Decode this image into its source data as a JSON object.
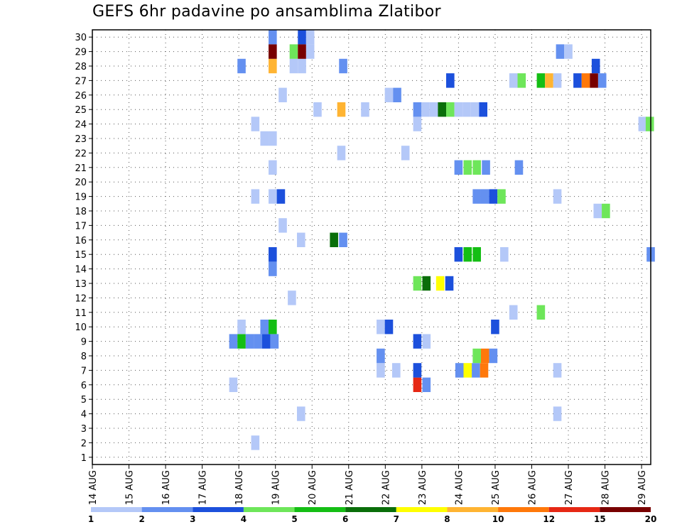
{
  "chart_data": {
    "type": "heatmap",
    "title": "GEFS 6hr padavine po ansamblima Zlatibor",
    "xlabel": "",
    "ylabel": "",
    "x_ticks": [
      "14 AUG",
      "15 AUG",
      "16 AUG",
      "17 AUG",
      "18 AUG",
      "19 AUG",
      "20 AUG",
      "21 AUG",
      "22 AUG",
      "23 AUG",
      "24 AUG",
      "25 AUG",
      "26 AUG",
      "27 AUG",
      "28 AUG",
      "29 AUG"
    ],
    "y_ticks": [
      "1",
      "2",
      "3",
      "4",
      "5",
      "6",
      "7",
      "8",
      "9",
      "10",
      "11",
      "12",
      "13",
      "14",
      "15",
      "16",
      "17",
      "18",
      "19",
      "20",
      "21",
      "22",
      "23",
      "24",
      "25",
      "26",
      "27",
      "28",
      "29",
      "30"
    ],
    "ylim": [
      1,
      30
    ],
    "x_unit": "6-hour step from 14 AUG 00Z",
    "xlim": [
      0,
      61
    ],
    "grid": true,
    "colorbar": {
      "labels": [
        "1",
        "2",
        "3",
        "4",
        "5",
        "6",
        "7",
        "8",
        "10",
        "12",
        "15",
        "20"
      ],
      "colors": [
        "#b4c8f8",
        "#6490f0",
        "#1c50dc",
        "#6ee65a",
        "#14be14",
        "#0a6e0a",
        "#ffff00",
        "#ffb432",
        "#ff780a",
        "#e62814",
        "#780000"
      ]
    },
    "cells": [
      {
        "x": 17.8,
        "y": 1,
        "c": 0
      },
      {
        "x": 22.8,
        "y": 3,
        "c": 0
      },
      {
        "x": 50.8,
        "y": 3,
        "c": 0
      },
      {
        "x": 15.4,
        "y": 5,
        "c": 0
      },
      {
        "x": 35.5,
        "y": 5,
        "c": 9
      },
      {
        "x": 36.5,
        "y": 5,
        "c": 1
      },
      {
        "x": 31.5,
        "y": 6,
        "c": 0
      },
      {
        "x": 33.2,
        "y": 6,
        "c": 0
      },
      {
        "x": 35.5,
        "y": 6,
        "c": 2
      },
      {
        "x": 40.1,
        "y": 6,
        "c": 1
      },
      {
        "x": 41.0,
        "y": 6,
        "c": 6
      },
      {
        "x": 41.9,
        "y": 6,
        "c": 1
      },
      {
        "x": 42.8,
        "y": 6,
        "c": 8
      },
      {
        "x": 50.8,
        "y": 6,
        "c": 0
      },
      {
        "x": 31.5,
        "y": 7,
        "c": 1
      },
      {
        "x": 42.0,
        "y": 7,
        "c": 3
      },
      {
        "x": 42.9,
        "y": 7,
        "c": 8
      },
      {
        "x": 43.8,
        "y": 7,
        "c": 1
      },
      {
        "x": 15.4,
        "y": 8,
        "c": 1
      },
      {
        "x": 16.3,
        "y": 8,
        "c": 4
      },
      {
        "x": 17.2,
        "y": 8,
        "c": 1
      },
      {
        "x": 18.1,
        "y": 8,
        "c": 1
      },
      {
        "x": 19.0,
        "y": 8,
        "c": 2
      },
      {
        "x": 19.9,
        "y": 8,
        "c": 1
      },
      {
        "x": 35.5,
        "y": 8,
        "c": 2
      },
      {
        "x": 36.5,
        "y": 8,
        "c": 0
      },
      {
        "x": 16.3,
        "y": 9,
        "c": 0
      },
      {
        "x": 18.8,
        "y": 9,
        "c": 1
      },
      {
        "x": 19.7,
        "y": 9,
        "c": 4
      },
      {
        "x": 31.5,
        "y": 9,
        "c": 0
      },
      {
        "x": 32.4,
        "y": 9,
        "c": 2
      },
      {
        "x": 44.0,
        "y": 9,
        "c": 2
      },
      {
        "x": 46.0,
        "y": 10,
        "c": 0
      },
      {
        "x": 49.0,
        "y": 10,
        "c": 3
      },
      {
        "x": 21.8,
        "y": 11,
        "c": 0
      },
      {
        "x": 35.5,
        "y": 12,
        "c": 3
      },
      {
        "x": 36.5,
        "y": 12,
        "c": 5
      },
      {
        "x": 38.0,
        "y": 12,
        "c": 6
      },
      {
        "x": 39.0,
        "y": 12,
        "c": 2
      },
      {
        "x": 19.7,
        "y": 13,
        "c": 1
      },
      {
        "x": 19.7,
        "y": 14,
        "c": 2
      },
      {
        "x": 40.0,
        "y": 14,
        "c": 2
      },
      {
        "x": 41.0,
        "y": 14,
        "c": 4
      },
      {
        "x": 42.0,
        "y": 14,
        "c": 4
      },
      {
        "x": 45.0,
        "y": 14,
        "c": 0
      },
      {
        "x": 61.0,
        "y": 14,
        "c": 1
      },
      {
        "x": 22.8,
        "y": 15,
        "c": 0
      },
      {
        "x": 26.4,
        "y": 15,
        "c": 5
      },
      {
        "x": 27.4,
        "y": 15,
        "c": 1
      },
      {
        "x": 20.8,
        "y": 16,
        "c": 0
      },
      {
        "x": 55.2,
        "y": 17,
        "c": 0
      },
      {
        "x": 56.1,
        "y": 17,
        "c": 3
      },
      {
        "x": 17.8,
        "y": 18,
        "c": 0
      },
      {
        "x": 19.7,
        "y": 18,
        "c": 0
      },
      {
        "x": 20.6,
        "y": 18,
        "c": 2
      },
      {
        "x": 42.0,
        "y": 18,
        "c": 1
      },
      {
        "x": 42.9,
        "y": 18,
        "c": 1
      },
      {
        "x": 43.8,
        "y": 18,
        "c": 2
      },
      {
        "x": 44.7,
        "y": 18,
        "c": 3
      },
      {
        "x": 50.8,
        "y": 18,
        "c": 0
      },
      {
        "x": 40.0,
        "y": 20,
        "c": 1
      },
      {
        "x": 41.0,
        "y": 20,
        "c": 3
      },
      {
        "x": 42.0,
        "y": 20,
        "c": 3
      },
      {
        "x": 43.0,
        "y": 20,
        "c": 1
      },
      {
        "x": 46.6,
        "y": 20,
        "c": 1
      },
      {
        "x": 19.7,
        "y": 20,
        "c": 0
      },
      {
        "x": 27.2,
        "y": 21,
        "c": 0
      },
      {
        "x": 34.2,
        "y": 21,
        "c": 0
      },
      {
        "x": 18.8,
        "y": 22,
        "c": 0
      },
      {
        "x": 19.7,
        "y": 22,
        "c": 0
      },
      {
        "x": 17.8,
        "y": 23,
        "c": 0
      },
      {
        "x": 35.5,
        "y": 23,
        "c": 0
      },
      {
        "x": 60.1,
        "y": 23,
        "c": 0
      },
      {
        "x": 60.9,
        "y": 23,
        "c": 3
      },
      {
        "x": 24.6,
        "y": 24,
        "c": 0
      },
      {
        "x": 27.2,
        "y": 24,
        "c": 7
      },
      {
        "x": 29.8,
        "y": 24,
        "c": 0
      },
      {
        "x": 35.5,
        "y": 24,
        "c": 1
      },
      {
        "x": 36.4,
        "y": 24,
        "c": 0
      },
      {
        "x": 37.3,
        "y": 24,
        "c": 0
      },
      {
        "x": 38.2,
        "y": 24,
        "c": 5
      },
      {
        "x": 39.1,
        "y": 24,
        "c": 3
      },
      {
        "x": 40.0,
        "y": 24,
        "c": 0
      },
      {
        "x": 40.9,
        "y": 24,
        "c": 0
      },
      {
        "x": 41.8,
        "y": 24,
        "c": 0
      },
      {
        "x": 42.7,
        "y": 24,
        "c": 2
      },
      {
        "x": 20.8,
        "y": 25,
        "c": 0
      },
      {
        "x": 32.4,
        "y": 25,
        "c": 0
      },
      {
        "x": 33.3,
        "y": 25,
        "c": 1
      },
      {
        "x": 39.1,
        "y": 26,
        "c": 2
      },
      {
        "x": 46.0,
        "y": 26,
        "c": 0
      },
      {
        "x": 46.9,
        "y": 26,
        "c": 3
      },
      {
        "x": 49.0,
        "y": 26,
        "c": 4
      },
      {
        "x": 49.9,
        "y": 26,
        "c": 7
      },
      {
        "x": 50.8,
        "y": 26,
        "c": 0
      },
      {
        "x": 53.0,
        "y": 26,
        "c": 2
      },
      {
        "x": 53.9,
        "y": 26,
        "c": 8
      },
      {
        "x": 54.8,
        "y": 26,
        "c": 10
      },
      {
        "x": 55.7,
        "y": 26,
        "c": 1
      },
      {
        "x": 16.3,
        "y": 27,
        "c": 1
      },
      {
        "x": 19.7,
        "y": 27,
        "c": 7
      },
      {
        "x": 22.0,
        "y": 27,
        "c": 0
      },
      {
        "x": 22.9,
        "y": 27,
        "c": 0
      },
      {
        "x": 27.4,
        "y": 27,
        "c": 1
      },
      {
        "x": 55.0,
        "y": 27,
        "c": 2
      },
      {
        "x": 19.7,
        "y": 28,
        "c": 10
      },
      {
        "x": 22.0,
        "y": 28,
        "c": 3
      },
      {
        "x": 22.9,
        "y": 28,
        "c": 10
      },
      {
        "x": 23.8,
        "y": 28,
        "c": 0
      },
      {
        "x": 51.1,
        "y": 28,
        "c": 1
      },
      {
        "x": 52.0,
        "y": 28,
        "c": 0
      },
      {
        "x": 19.7,
        "y": 29,
        "c": 1
      },
      {
        "x": 22.9,
        "y": 29,
        "c": 2
      },
      {
        "x": 23.8,
        "y": 29,
        "c": 0
      }
    ]
  }
}
